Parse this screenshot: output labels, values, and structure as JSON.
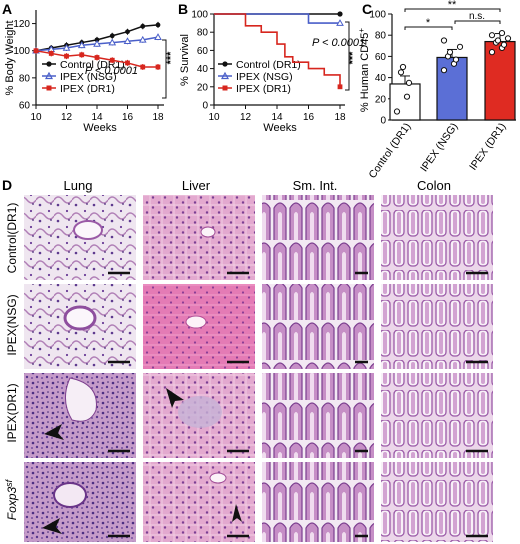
{
  "panel_labels": {
    "a": "A",
    "b": "B",
    "c": "C",
    "d": "D"
  },
  "series_names": [
    "Control (DR1)",
    "IPEX (NSG)",
    "IPEX (DR1)"
  ],
  "colors": {
    "control": "#111111",
    "ipex_nsg": "#4a5fc9",
    "ipex_dr1": "#d7261e"
  },
  "panel_a": {
    "ylabel": "% Body Weight",
    "xlabel": "Weeks",
    "pvalue": "P < 0.0001",
    "sig": "***"
  },
  "panel_b": {
    "ylabel": "% Survival",
    "xlabel": "Weeks",
    "pvalue": "P < 0.0001",
    "sig": "***"
  },
  "panel_c": {
    "ylabel": "% Human CD45",
    "ylabel_sup": "+",
    "sig_top": "**",
    "sig_left": "*",
    "sig_right": "n.s."
  },
  "panel_d": {
    "columns": [
      "Lung",
      "Liver",
      "Sm. Int.",
      "Colon"
    ],
    "rows": [
      "Control(DR1)",
      "IPEX(NSG)",
      "IPEX(DR1)",
      "Foxp3"
    ],
    "foxp3_sup": "sf"
  },
  "chart_data": [
    {
      "type": "line",
      "panel": "A",
      "xlabel": "Weeks",
      "ylabel": "% Body Weight",
      "xlim": [
        10,
        18
      ],
      "ylim": [
        60,
        130
      ],
      "xticks": [
        10,
        12,
        14,
        16,
        18
      ],
      "yticks": [
        60,
        80,
        100,
        120
      ],
      "x": [
        10,
        11,
        12,
        13,
        14,
        15,
        16,
        17,
        18
      ],
      "series": [
        {
          "name": "Control (DR1)",
          "values": [
            100,
            102,
            104,
            106,
            108,
            111,
            114,
            118,
            119
          ]
        },
        {
          "name": "IPEX (NSG)",
          "values": [
            100,
            101,
            102,
            104,
            105,
            106,
            107,
            108,
            110
          ]
        },
        {
          "name": "IPEX (DR1)",
          "values": [
            100,
            98,
            96,
            97,
            95,
            93,
            91,
            88,
            88
          ]
        }
      ],
      "legend": "bottom-left",
      "annotations": [
        "P < 0.0001",
        "***"
      ]
    },
    {
      "type": "line",
      "panel": "B",
      "xlabel": "Weeks",
      "ylabel": "% Survival",
      "xlim": [
        10,
        18
      ],
      "ylim": [
        0,
        100
      ],
      "xticks": [
        10,
        12,
        14,
        16,
        18
      ],
      "yticks": [
        0,
        20,
        40,
        60,
        80,
        100
      ],
      "series": [
        {
          "name": "Control (DR1)",
          "x": [
            10,
            18
          ],
          "values": [
            100,
            100
          ]
        },
        {
          "name": "IPEX (NSG)",
          "x": [
            10,
            16,
            18
          ],
          "values": [
            100,
            90,
            90
          ]
        },
        {
          "name": "IPEX (DR1)",
          "x": [
            10,
            12,
            13,
            14,
            14.5,
            15,
            16,
            17,
            18
          ],
          "values": [
            100,
            87,
            80,
            67,
            53,
            47,
            40,
            33,
            20
          ]
        }
      ],
      "legend": "bottom-left",
      "annotations": [
        "P < 0.0001",
        "***"
      ]
    },
    {
      "type": "bar",
      "panel": "C",
      "ylabel": "% Human CD45+",
      "ylim": [
        0,
        100
      ],
      "yticks": [
        0,
        20,
        40,
        60,
        80,
        100
      ],
      "categories": [
        "Control (DR1)",
        "IPEX (NSG)",
        "IPEX (DR1)"
      ],
      "values": [
        34,
        59,
        74
      ],
      "points": [
        [
          8,
          22,
          35,
          45,
          50
        ],
        [
          47,
          53,
          57,
          60,
          64,
          69,
          75
        ],
        [
          64,
          68,
          71,
          73,
          75,
          77,
          80,
          82
        ]
      ],
      "annotations": [
        "**",
        "*",
        "n.s."
      ]
    }
  ]
}
